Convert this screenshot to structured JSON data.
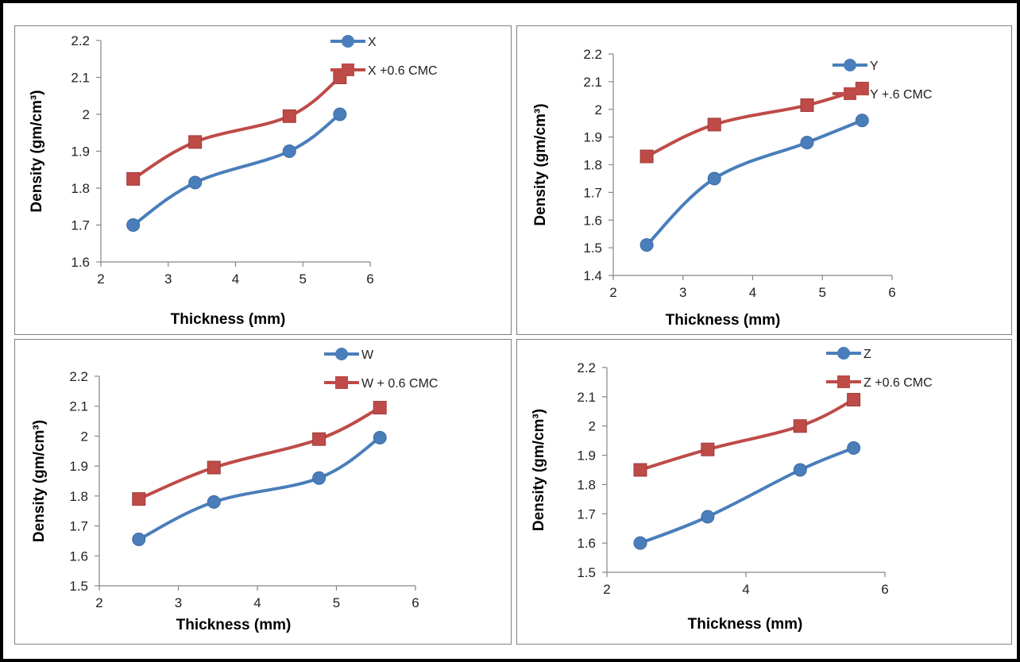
{
  "colors": {
    "series1": "#4a7ebb",
    "series2": "#be4b48",
    "axis": "#868686",
    "border": "#000000"
  },
  "chart_data": [
    {
      "type": "line",
      "xlabel": "Thickness (mm)",
      "ylabel": "Density (gm/cm³)",
      "xlim": [
        2,
        6
      ],
      "xticks": [
        "2",
        "3",
        "4",
        "5",
        "6"
      ],
      "ylim": [
        1.6,
        2.2
      ],
      "yticks": [
        "1.6",
        "1.7",
        "1.8",
        "1.9",
        "2",
        "2.1",
        "2.2"
      ],
      "x": [
        2.48,
        3.4,
        4.8,
        5.55
      ],
      "series": [
        {
          "name": "X",
          "marker": "circle",
          "values": [
            1.7,
            1.815,
            1.9,
            2.0
          ]
        },
        {
          "name": "X +0.6 CMC",
          "marker": "square",
          "values": [
            1.825,
            1.925,
            1.995,
            2.1
          ]
        }
      ],
      "legend": "top-right",
      "grid": false
    },
    {
      "type": "line",
      "xlabel": "Thickness (mm)",
      "ylabel": "Density (gm/cm³)",
      "xlim": [
        2,
        6
      ],
      "xticks": [
        "2",
        "3",
        "4",
        "5",
        "6"
      ],
      "ylim": [
        1.4,
        2.2
      ],
      "yticks": [
        "1.4",
        "1.5",
        "1.6",
        "1.7",
        "1.8",
        "1.9",
        "2",
        "2.1",
        "2.2"
      ],
      "x": [
        2.48,
        3.45,
        4.78,
        5.57
      ],
      "series": [
        {
          "name": "Y",
          "marker": "circle",
          "values": [
            1.51,
            1.75,
            1.88,
            1.96
          ]
        },
        {
          "name": "Y +.6 CMC",
          "marker": "square",
          "values": [
            1.83,
            1.945,
            2.015,
            2.075
          ]
        }
      ],
      "legend": "top-right",
      "grid": false
    },
    {
      "type": "line",
      "xlabel": "Thickness (mm)",
      "ylabel": "Density (gm/cm³)",
      "xlim": [
        2,
        6
      ],
      "xticks": [
        "2",
        "3",
        "4",
        "5",
        "6"
      ],
      "ylim": [
        1.5,
        2.2
      ],
      "yticks": [
        "1.5",
        "1.6",
        "1.7",
        "1.8",
        "1.9",
        "2",
        "2.1",
        "2.2"
      ],
      "x": [
        2.5,
        3.45,
        4.78,
        5.55
      ],
      "series": [
        {
          "name": "W",
          "marker": "circle",
          "values": [
            1.655,
            1.78,
            1.86,
            1.995
          ]
        },
        {
          "name": "W + 0.6 CMC",
          "marker": "square",
          "values": [
            1.79,
            1.895,
            1.99,
            2.095
          ]
        }
      ],
      "legend": "top-right",
      "grid": false
    },
    {
      "type": "line",
      "xlabel": "Thickness (mm)",
      "ylabel": "Density (gm/cm³)",
      "xlim": [
        2,
        6
      ],
      "xticks": [
        "2",
        "4",
        "6"
      ],
      "ylim": [
        1.5,
        2.2
      ],
      "yticks": [
        "1.5",
        "1.6",
        "1.7",
        "1.8",
        "1.9",
        "2",
        "2.1",
        "2.2"
      ],
      "x": [
        2.48,
        3.45,
        4.78,
        5.55
      ],
      "series": [
        {
          "name": "Z",
          "marker": "circle",
          "values": [
            1.6,
            1.69,
            1.85,
            1.925
          ]
        },
        {
          "name": "Z +0.6 CMC",
          "marker": "square",
          "values": [
            1.85,
            1.92,
            2.0,
            2.09
          ]
        }
      ],
      "legend": "top-right",
      "grid": false
    }
  ]
}
